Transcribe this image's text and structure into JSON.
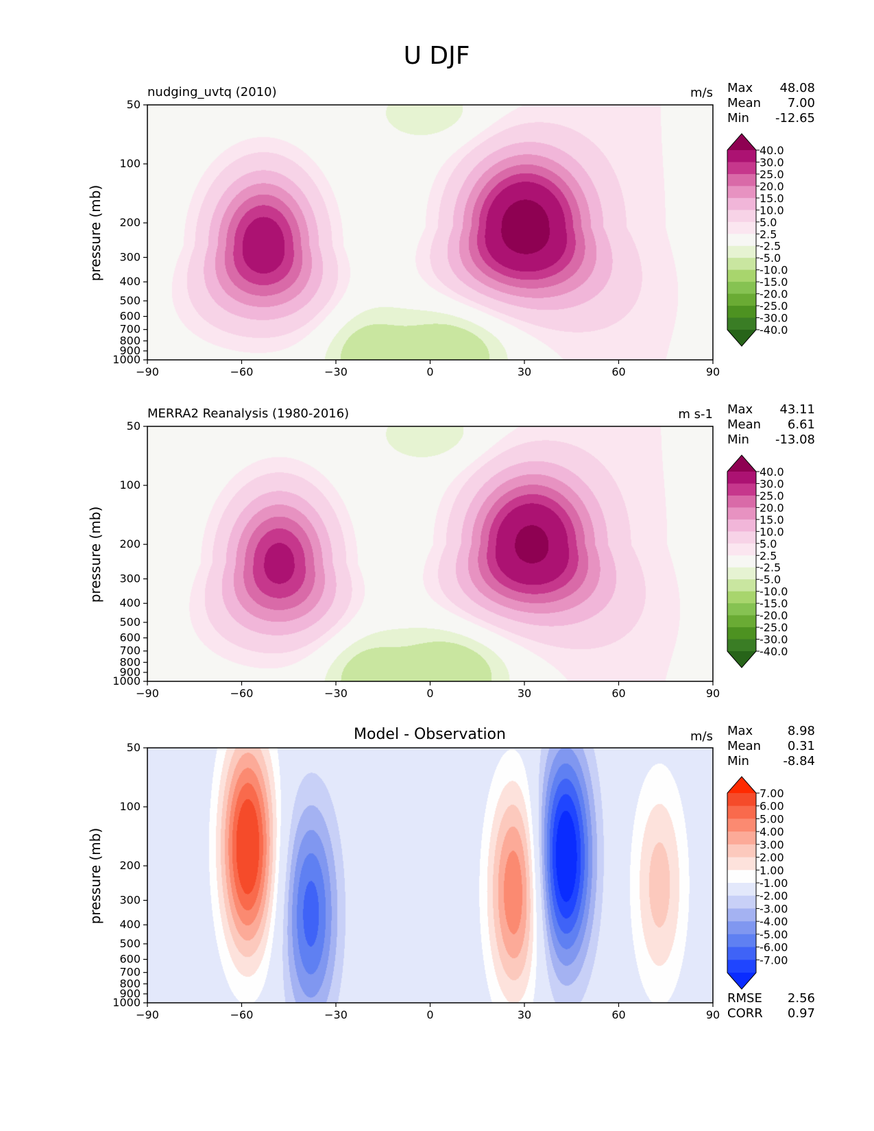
{
  "figure_title": "U DJF",
  "stat_labels": {
    "max": "Max",
    "mean": "Mean",
    "min": "Min",
    "rmse": "RMSE",
    "corr": "CORR"
  },
  "chart_data": [
    {
      "type": "contour",
      "title": "nudging_uvtq (2010)",
      "units": "m/s",
      "xlabel": "",
      "ylabel": "pressure (mb)",
      "xlim": [
        -90,
        90
      ],
      "ylim": [
        1000,
        50
      ],
      "x_ticks": [
        "−90",
        "−60",
        "−30",
        "0",
        "30",
        "60",
        "90"
      ],
      "x_values": [
        -90,
        -60,
        -30,
        0,
        30,
        60,
        90
      ],
      "y_ticks": [
        50,
        100,
        200,
        300,
        400,
        500,
        600,
        700,
        800,
        900,
        1000
      ],
      "stats": {
        "max": "48.08",
        "mean": "7.00",
        "min": "-12.65"
      },
      "colorbar_levels": [
        "-40.0",
        "-30.0",
        "-25.0",
        "-20.0",
        "-15.0",
        "-10.0",
        "-5.0",
        "-2.5",
        "2.5",
        "5.0",
        "10.0",
        "15.0",
        "20.0",
        "25.0",
        "30.0",
        "40.0"
      ],
      "colorbar_colors": [
        "#276419",
        "#3a7d25",
        "#4d9221",
        "#6aab34",
        "#86c252",
        "#a8d56d",
        "#c9e6a0",
        "#e6f3d2",
        "#f7f7f4",
        "#fbe6f0",
        "#f7d3e7",
        "#f1b6d9",
        "#e792c1",
        "#d96aa8",
        "#c6378c",
        "#ac1272",
        "#8e0152"
      ],
      "jets": [
        {
          "lat": -53,
          "p": 260,
          "speed": 36,
          "lat_half_width": 11,
          "log_p_width": 0.55
        },
        {
          "lat": 30,
          "p": 210,
          "speed": 46,
          "lat_half_width": 13,
          "log_p_width": 0.55
        }
      ]
    },
    {
      "type": "contour",
      "title": "MERRA2 Reanalysis (1980-2016)",
      "units": "m s-1",
      "xlabel": "",
      "ylabel": "pressure (mb)",
      "xlim": [
        -90,
        90
      ],
      "ylim": [
        1000,
        50
      ],
      "x_ticks": [
        "−90",
        "−60",
        "−30",
        "0",
        "30",
        "60",
        "90"
      ],
      "x_values": [
        -90,
        -60,
        -30,
        0,
        30,
        60,
        90
      ],
      "y_ticks": [
        50,
        100,
        200,
        300,
        400,
        500,
        600,
        700,
        800,
        900,
        1000
      ],
      "stats": {
        "max": "43.11",
        "mean": "6.61",
        "min": "-13.08"
      },
      "colorbar_levels": [
        "-40.0",
        "-30.0",
        "-25.0",
        "-20.0",
        "-15.0",
        "-10.0",
        "-5.0",
        "-2.5",
        "2.5",
        "5.0",
        "10.0",
        "15.0",
        "20.0",
        "25.0",
        "30.0",
        "40.0"
      ],
      "colorbar_colors": [
        "#276419",
        "#3a7d25",
        "#4d9221",
        "#6aab34",
        "#86c252",
        "#a8d56d",
        "#c9e6a0",
        "#e6f3d2",
        "#f7f7f4",
        "#fbe6f0",
        "#f7d3e7",
        "#f1b6d9",
        "#e792c1",
        "#d96aa8",
        "#c6378c",
        "#ac1272",
        "#8e0152"
      ],
      "jets": [
        {
          "lat": -48,
          "p": 250,
          "speed": 33,
          "lat_half_width": 11,
          "log_p_width": 0.55
        },
        {
          "lat": 32,
          "p": 200,
          "speed": 42,
          "lat_half_width": 13,
          "log_p_width": 0.55
        }
      ]
    },
    {
      "type": "contour",
      "title": "Model - Observation",
      "units": "m/s",
      "xlabel": "",
      "ylabel": "pressure (mb)",
      "xlim": [
        -90,
        90
      ],
      "ylim": [
        1000,
        50
      ],
      "x_ticks": [
        "−90",
        "−60",
        "−30",
        "0",
        "30",
        "60",
        "90"
      ],
      "x_values": [
        -90,
        -60,
        -30,
        0,
        30,
        60,
        90
      ],
      "y_ticks": [
        50,
        100,
        200,
        300,
        400,
        500,
        600,
        700,
        800,
        900,
        1000
      ],
      "stats": {
        "max": "8.98",
        "mean": "0.31",
        "min": "-8.84",
        "rmse": "2.56",
        "corr": "0.97"
      },
      "colorbar_levels": [
        "-7.00",
        "-6.00",
        "-5.00",
        "-4.00",
        "-3.00",
        "-2.00",
        "-1.00",
        "1.00",
        "2.00",
        "3.00",
        "4.00",
        "5.00",
        "6.00",
        "7.00"
      ],
      "colorbar_colors": [
        "#0a2cff",
        "#1f45ff",
        "#3f63f7",
        "#5f80f2",
        "#8097f0",
        "#a4b2f2",
        "#c8d0f7",
        "#e3e8fb",
        "#fefefe",
        "#fde2dc",
        "#fcc9bd",
        "#fcaa98",
        "#fb8a71",
        "#f96a4c",
        "#f54b2a",
        "#ff2a00"
      ],
      "anomalies": [
        {
          "lat": -58,
          "p": 160,
          "value": 8.5
        },
        {
          "lat": -38,
          "p": 350,
          "value": -5.5
        },
        {
          "lat": 27,
          "p": 270,
          "value": 6.0
        },
        {
          "lat": 43,
          "p": 180,
          "value": -8.5
        },
        {
          "lat": 73,
          "p": 250,
          "value": 3.5
        }
      ]
    }
  ]
}
